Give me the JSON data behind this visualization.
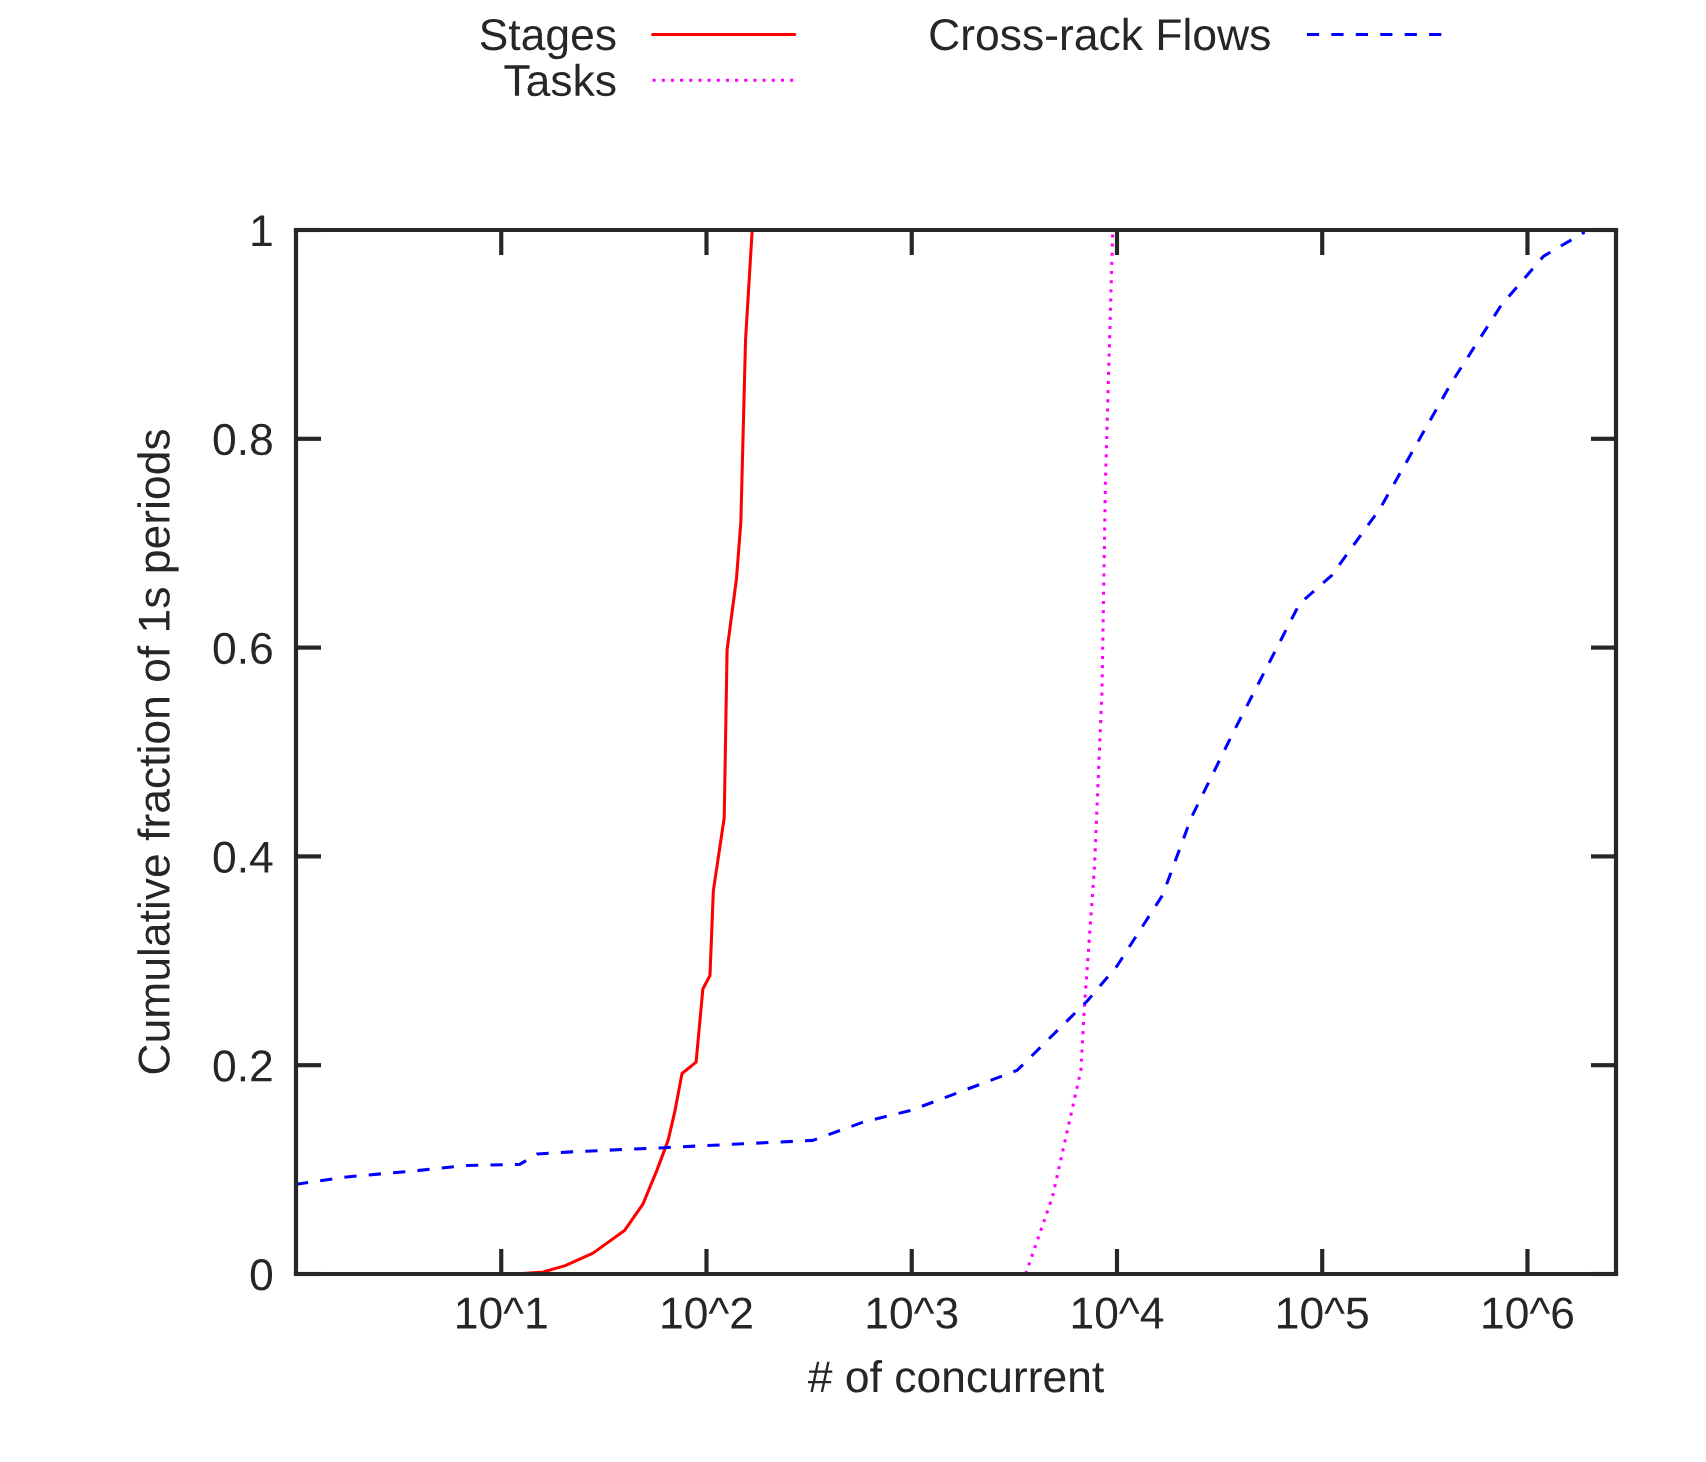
{
  "chart_data": {
    "type": "line",
    "xlabel": "# of concurrent",
    "ylabel": "Cumulative fraction of 1s periods",
    "log": "x",
    "legend": "top",
    "grid": false,
    "marker": "none",
    "xlim": [
      1,
      2700000
    ],
    "xticks": [
      {
        "value": 10,
        "label": "10^1"
      },
      {
        "value": 100,
        "label": "10^2"
      },
      {
        "value": 1000,
        "label": "10^3"
      },
      {
        "value": 10000,
        "label": "10^4"
      },
      {
        "value": 100000,
        "label": "10^5"
      },
      {
        "value": 1000000,
        "label": "10^6"
      }
    ],
    "ylim": [
      0,
      1
    ],
    "yticks": [
      0,
      0.2,
      0.4,
      0.6,
      0.8,
      1
    ],
    "series": [
      {
        "name": "Stages",
        "color": "#ff0000",
        "line_style": "solid",
        "x": [
          11.8,
          16,
          20.5,
          28,
          40,
          49,
          57.5,
          65,
          70,
          76,
          89,
          96,
          104,
          108,
          122,
          126,
          140,
          147,
          155,
          167
        ],
        "values": [
          0,
          0.002,
          0.008,
          0.02,
          0.042,
          0.067,
          0.1,
          0.128,
          0.155,
          0.192,
          0.203,
          0.273,
          0.286,
          0.367,
          0.437,
          0.598,
          0.666,
          0.72,
          0.895,
          1
        ]
      },
      {
        "name": "Tasks",
        "color": "#ff00ff",
        "line_style": "dotted",
        "x": [
          3590,
          4850,
          6670,
          6940,
          7770,
          8450,
          8790,
          9540
        ],
        "values": [
          0,
          0.074,
          0.195,
          0.256,
          0.39,
          0.558,
          0.76,
          1
        ]
      },
      {
        "name": "Cross-rack Flows",
        "color": "#0000ff",
        "line_style": "dashed",
        "x": [
          1,
          1.76,
          3.9,
          6.8,
          12.3,
          15,
          22,
          62,
          330,
          570,
          1000,
          3260,
          7200,
          10000,
          16700,
          23000,
          36700,
          77500,
          111000,
          191000,
          427000,
          745000,
          1200000,
          1900000
        ],
        "values": [
          0.086,
          0.093,
          0.099,
          0.104,
          0.105,
          0.115,
          0.117,
          0.121,
          0.128,
          0.145,
          0.157,
          0.195,
          0.262,
          0.295,
          0.363,
          0.437,
          0.518,
          0.642,
          0.669,
          0.733,
          0.854,
          0.928,
          0.975,
          0.998
        ]
      }
    ]
  }
}
